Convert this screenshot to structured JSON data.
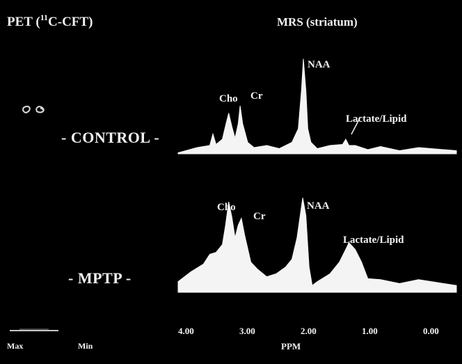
{
  "pet_title": {
    "prefix": "PET (",
    "superscript": "11",
    "suffix": "C-CFT)"
  },
  "mrs_title": "MRS  (striatum)",
  "rows": {
    "control": {
      "label": "- CONTROL -"
    },
    "mptp": {
      "label": "- MPTP -"
    }
  },
  "peaks": {
    "control": {
      "cho": "Cho",
      "cr": "Cr",
      "naa": "NAA",
      "lactate": "Lactate/Lipid"
    },
    "mptp": {
      "cho": "Cho",
      "cr": "Cr",
      "naa": "NAA",
      "lactate": "Lactate/Lipid"
    }
  },
  "x_axis": {
    "title": "PPM",
    "ticks": [
      "4.00",
      "3.00",
      "2.00",
      "1.00",
      "0.00"
    ]
  },
  "scale_bar": {
    "max": "Max",
    "min": "Min"
  },
  "chart_data": [
    {
      "type": "area",
      "series": [
        {
          "name": "CONTROL",
          "x_ppm": [
            4.0,
            3.7,
            3.5,
            3.45,
            3.4,
            3.3,
            3.25,
            3.2,
            3.15,
            3.1,
            3.05,
            3.02,
            2.98,
            2.9,
            2.8,
            2.6,
            2.4,
            2.2,
            2.1,
            2.05,
            2.02,
            1.98,
            1.95,
            1.9,
            1.8,
            1.6,
            1.4,
            1.35,
            1.3,
            1.2,
            1.0,
            0.8,
            0.5,
            0.2,
            -0.4
          ],
          "intensity": [
            0.02,
            0.05,
            0.09,
            0.18,
            0.1,
            0.13,
            0.28,
            0.38,
            0.27,
            0.14,
            0.3,
            0.45,
            0.3,
            0.1,
            0.07,
            0.07,
            0.06,
            0.1,
            0.25,
            0.6,
            0.92,
            0.6,
            0.25,
            0.1,
            0.06,
            0.07,
            0.1,
            0.13,
            0.09,
            0.07,
            0.05,
            0.06,
            0.04,
            0.05,
            0.04
          ]
        }
      ],
      "x_reversed": true
    },
    {
      "type": "area",
      "series": [
        {
          "name": "MPTP",
          "x_ppm": [
            4.0,
            3.8,
            3.6,
            3.5,
            3.4,
            3.3,
            3.25,
            3.2,
            3.15,
            3.1,
            3.05,
            3.0,
            2.95,
            2.85,
            2.75,
            2.6,
            2.45,
            2.3,
            2.2,
            2.12,
            2.07,
            2.03,
            1.98,
            1.93,
            1.88,
            1.8,
            1.6,
            1.45,
            1.35,
            1.3,
            1.2,
            1.1,
            1.0,
            0.8,
            0.5,
            0.2,
            -0.4
          ],
          "intensity": [
            0.12,
            0.2,
            0.3,
            0.38,
            0.42,
            0.48,
            0.7,
            0.92,
            0.78,
            0.55,
            0.7,
            0.75,
            0.6,
            0.3,
            0.25,
            0.15,
            0.2,
            0.25,
            0.35,
            0.55,
            0.8,
            0.96,
            0.8,
            0.25,
            0.08,
            0.1,
            0.2,
            0.3,
            0.45,
            0.5,
            0.45,
            0.3,
            0.15,
            0.12,
            0.1,
            0.12,
            0.08
          ]
        }
      ],
      "x_reversed": true
    }
  ]
}
